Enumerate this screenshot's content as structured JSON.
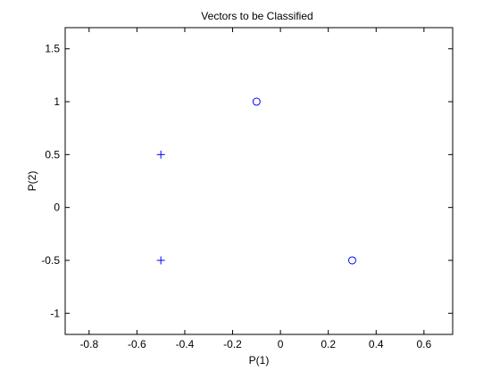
{
  "chart_data": {
    "type": "scatter",
    "title": "Vectors to be Classified",
    "xlabel": "P(1)",
    "ylabel": "P(2)",
    "xlim": [
      -0.9,
      0.72
    ],
    "ylim": [
      -1.2,
      1.7
    ],
    "xticks": [
      -0.8,
      -0.6,
      -0.4,
      -0.2,
      0,
      0.2,
      0.4,
      0.6
    ],
    "xtick_labels": [
      "-0.8",
      "-0.6",
      "-0.4",
      "-0.2",
      "0",
      "0.2",
      "0.4",
      "0.6"
    ],
    "yticks": [
      -1,
      -0.5,
      0,
      0.5,
      1,
      1.5
    ],
    "ytick_labels": [
      "-1",
      "-0.5",
      "0",
      "0.5",
      "1",
      "1.5"
    ],
    "grid": false,
    "series": [
      {
        "marker": "plus",
        "color": "#0000ff",
        "points": [
          {
            "x": -0.5,
            "y": 0.5
          },
          {
            "x": -0.5,
            "y": -0.5
          }
        ]
      },
      {
        "marker": "circle",
        "color": "#0000ff",
        "points": [
          {
            "x": -0.1,
            "y": 1.0
          },
          {
            "x": 0.3,
            "y": -0.5
          }
        ]
      }
    ]
  }
}
